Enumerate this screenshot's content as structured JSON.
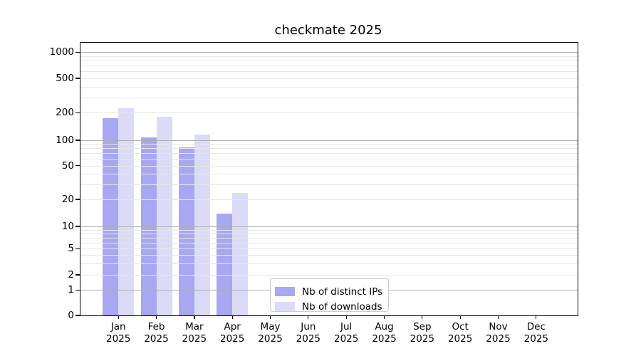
{
  "title": "checkmate 2025",
  "legend": {
    "items": [
      {
        "label": "Nb of distinct IPs",
        "color": "#a7a7f2"
      },
      {
        "label": "Nb of downloads",
        "color": "#dbdbf8"
      }
    ]
  },
  "colors": {
    "background": "#ffffff",
    "frame": "#000000",
    "grid_major": "#aeaeae",
    "grid_minor": "#e7e7e7",
    "series_ips": "#a7a7f2",
    "series_downloads": "#dbdbf8"
  },
  "chart_data": {
    "type": "bar",
    "title": "checkmate 2025",
    "categories": [
      "Jan 2025",
      "Feb 2025",
      "Mar 2025",
      "Apr 2025",
      "May 2025",
      "Jun 2025",
      "Jul 2025",
      "Aug 2025",
      "Sep 2025",
      "Oct 2025",
      "Nov 2025",
      "Dec 2025"
    ],
    "series": [
      {
        "name": "Nb of distinct IPs",
        "color": "#a7a7f2",
        "values": [
          174,
          107,
          82,
          14,
          0,
          0,
          0,
          0,
          0,
          0,
          0,
          0
        ]
      },
      {
        "name": "Nb of downloads",
        "color": "#dbdbf8",
        "values": [
          225,
          182,
          115,
          24,
          0,
          0,
          0,
          0,
          0,
          0,
          0,
          0
        ]
      }
    ],
    "yscale": "symlog",
    "y_ticks": [
      0,
      1,
      2,
      5,
      10,
      20,
      50,
      100,
      200,
      500,
      1000
    ],
    "ylim": [
      0,
      1200
    ],
    "xlabel": "",
    "ylabel": "",
    "grid": "both",
    "legend_position": "lower-center"
  }
}
